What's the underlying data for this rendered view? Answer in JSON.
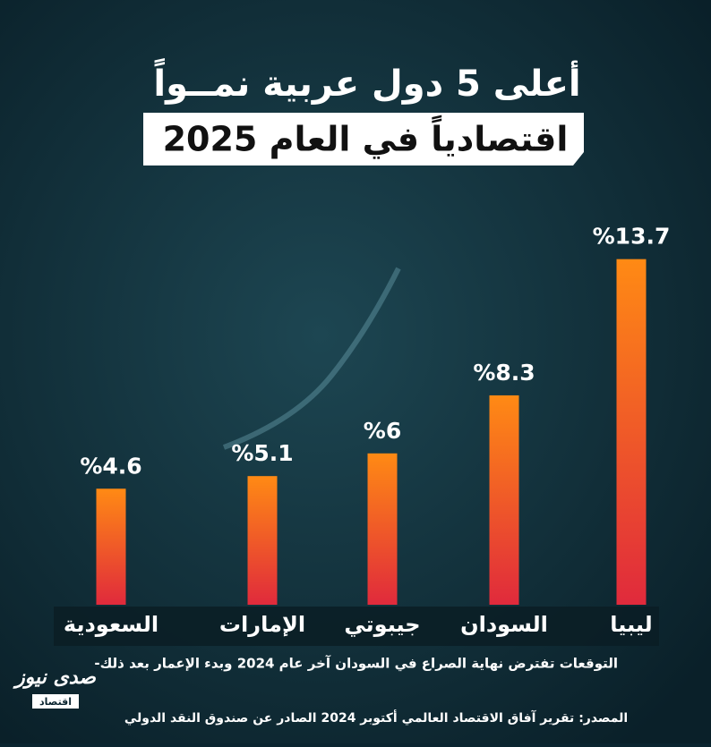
{
  "header": {
    "title_line1": "أعلى 5 دول عربية نمــواً",
    "title_line2": "اقتصادياً في العام 2025"
  },
  "chart_data": {
    "type": "bar",
    "categories": [
      "السعودية",
      "الإمارات",
      "جيبوتي",
      "السودان",
      "ليبيا"
    ],
    "values": [
      4.6,
      5.1,
      6,
      8.3,
      13.7
    ],
    "value_labels": [
      "%4.6",
      "%5.1",
      "%6",
      "%8.3",
      "%13.7"
    ],
    "color": "#ff7a1a"
  },
  "note": "-التوقعات تفترض نهاية الصراع في السودان آخر عام 2024 وبدء الإعمار بعد ذلك",
  "source": "المصدر: تقرير آفاق الاقتصاد العالمي أكتوبر 2024 الصادر عن صندوق النقد الدولي",
  "logo": {
    "name": "صدى نيوز",
    "tag": "اقتصاد"
  }
}
